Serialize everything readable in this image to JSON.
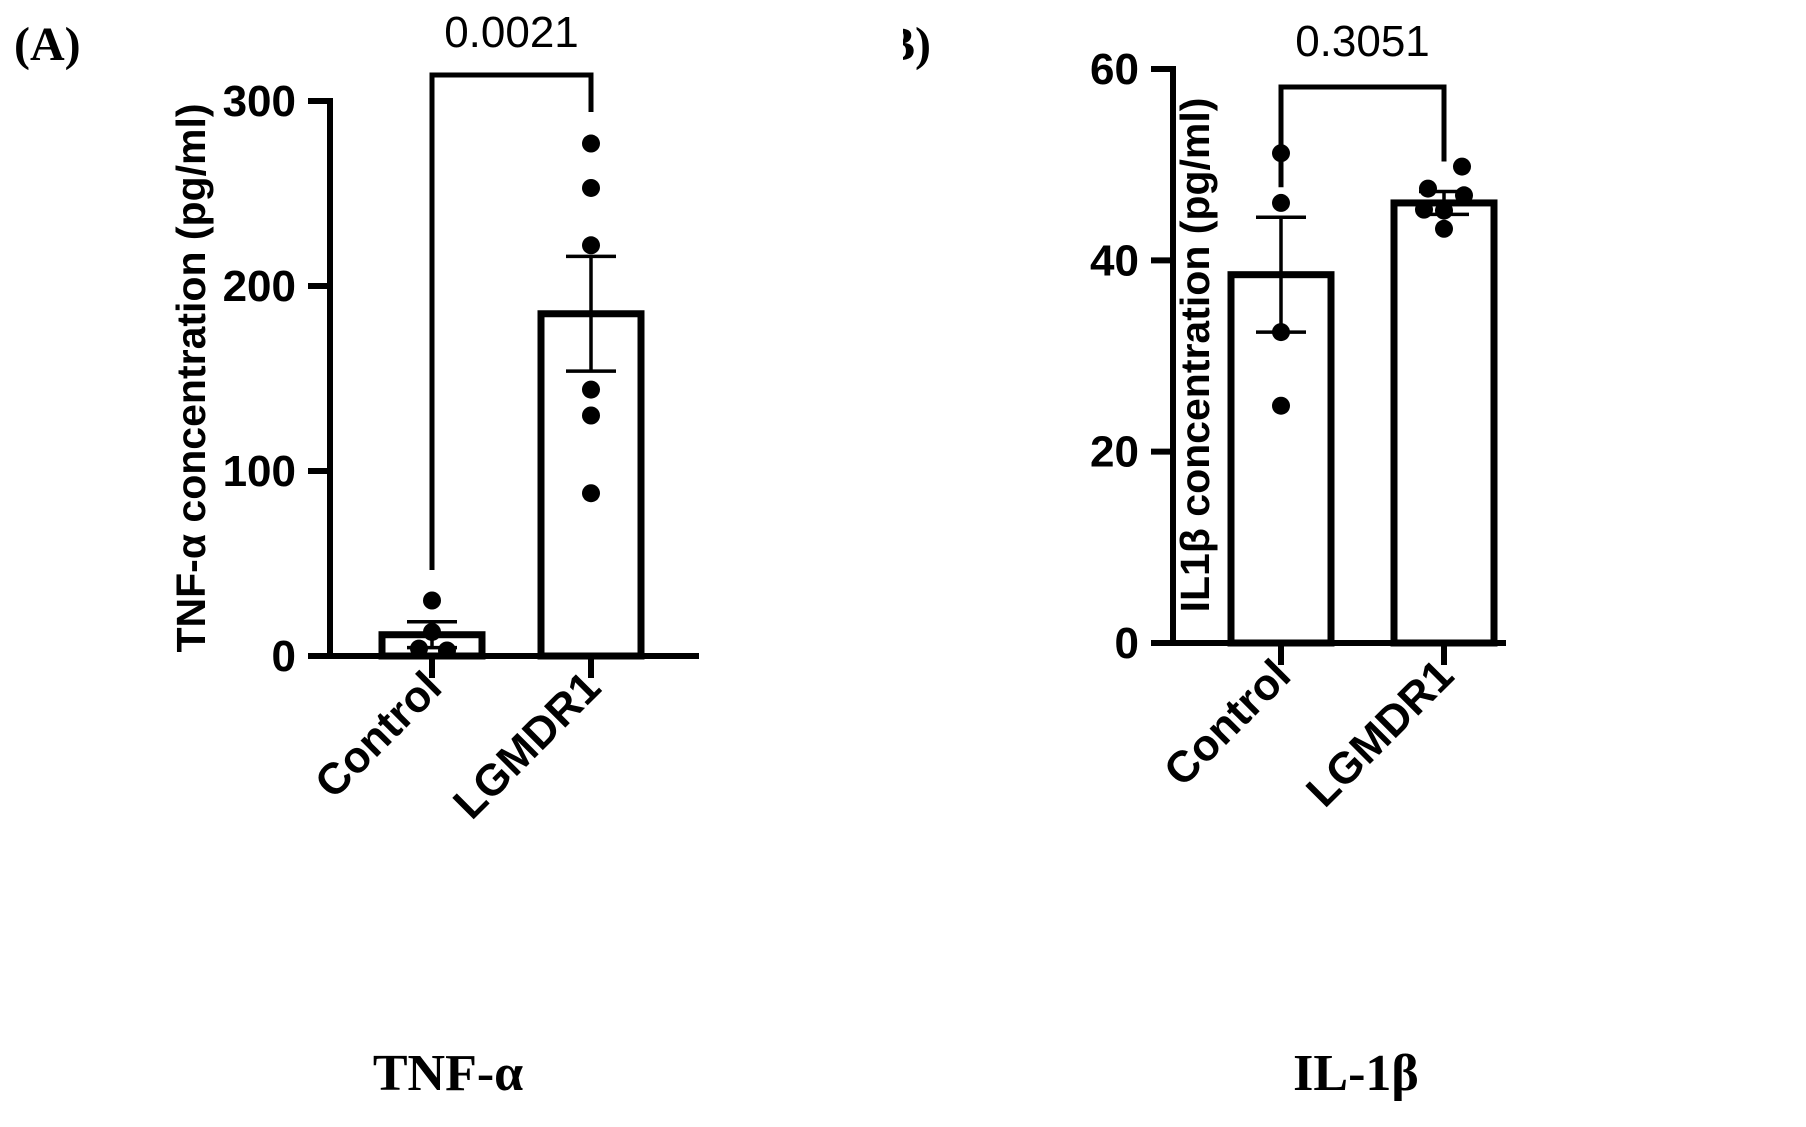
{
  "chart_data": [
    {
      "type": "bar",
      "panel_label": "(A)",
      "caption": "TNF-α",
      "ylabel": "TNF-α concentration (pg/ml)",
      "xlabel": "",
      "categories": [
        "Control",
        "LGMDR1"
      ],
      "values": [
        11.5,
        185
      ],
      "sem": [
        7,
        31
      ],
      "points": [
        [
          30,
          13,
          4,
          3
        ],
        [
          277,
          253,
          222,
          144,
          130,
          88
        ]
      ],
      "ylim": [
        0,
        300
      ],
      "yticks": [
        0,
        100,
        200,
        300
      ],
      "annotation": {
        "text": "0.0021",
        "between": [
          "Control",
          "LGMDR1"
        ]
      },
      "grid": false,
      "legend": "none"
    },
    {
      "type": "bar",
      "panel_label": "(B)",
      "caption": "IL-1β",
      "ylabel": "IL1β concentration (pg/ml)",
      "xlabel": "",
      "categories": [
        "Control",
        "LGMDR1"
      ],
      "values": [
        38.5,
        46
      ],
      "sem": [
        6,
        1.2
      ],
      "points": [
        [
          51.2,
          46,
          32.5,
          24.8
        ],
        [
          49.8,
          47.5,
          46.8,
          45.3,
          45.2,
          43.3
        ]
      ],
      "ylim": [
        0,
        60
      ],
      "yticks": [
        0,
        20,
        40,
        60
      ],
      "annotation": {
        "text": "0.3051",
        "between": [
          "Control",
          "LGMDR1"
        ]
      },
      "grid": false,
      "legend": "none"
    }
  ]
}
